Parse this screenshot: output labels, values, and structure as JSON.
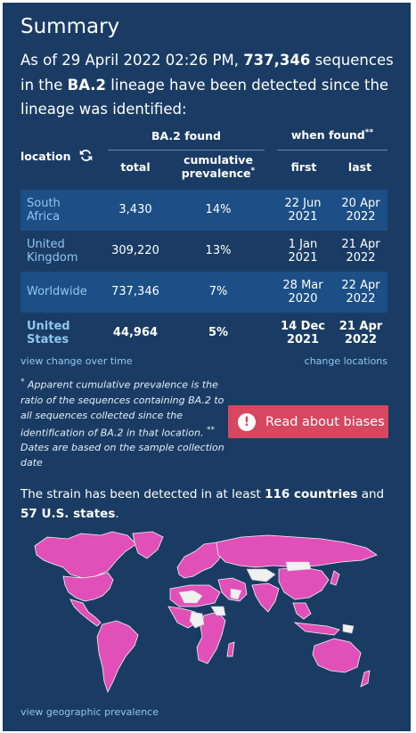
{
  "title": "Summary",
  "intro": {
    "part1": "As of 29 April 2022 02:26 PM, ",
    "sequences": "737,346",
    "part2": " sequences in the ",
    "lineage": "BA.2",
    "part3": " lineage have been detected since the lineage was identified:"
  },
  "table": {
    "location_header": "location",
    "found_header": "BA.2 found",
    "when_header": "when found",
    "when_sup": "**",
    "total_header": "total",
    "prevalence_header_1": "cumulative",
    "prevalence_header_2": "prevalence",
    "prevalence_sup": "*",
    "first_header": "first",
    "last_header": "last",
    "rows": [
      {
        "location_1": "South",
        "location_2": "Africa",
        "total": "3,430",
        "prevalence": "14%",
        "first_1": "22 Jun",
        "first_2": "2021",
        "last_1": "20 Apr",
        "last_2": "2022"
      },
      {
        "location_1": "United",
        "location_2": "Kingdom",
        "total": "309,220",
        "prevalence": "13%",
        "first_1": "1 Jan",
        "first_2": "2021",
        "last_1": "21 Apr",
        "last_2": "2022"
      },
      {
        "location_1": "Worldwide",
        "location_2": "",
        "total": "737,346",
        "prevalence": "7%",
        "first_1": "28 Mar",
        "first_2": "2020",
        "last_1": "22 Apr",
        "last_2": "2022"
      },
      {
        "location_1": "United",
        "location_2": "States",
        "total": "44,964",
        "prevalence": "5%",
        "first_1": "14 Dec",
        "first_2": "2021",
        "last_1": "21 Apr",
        "last_2": "2022"
      }
    ]
  },
  "links": {
    "change_over_time": "view change over time",
    "change_locations": "change locations",
    "geographic_prevalence": "view geographic prevalence"
  },
  "footnote": {
    "star": "*",
    "text1": " Apparent cumulative prevalence is the ratio of the sequences containing BA.2 to all sequences collected since the identification of BA.2 in that location. ",
    "star2": "**",
    "text2": " Dates are based on the sample collection date"
  },
  "bias_button": {
    "label": "Read about biases",
    "icon": "!"
  },
  "strain": {
    "part1": "The strain has been detected in at least ",
    "countries": "116 countries",
    "part2": " and ",
    "states": "57 U.S. states",
    "part3": "."
  },
  "colors": {
    "background": "#1a3c64",
    "row_highlight": "#1c4f85",
    "link": "#8fc7ee",
    "accent": "#d7475f",
    "detected": "#e14fb8",
    "not_detected": "#f0f0f0"
  },
  "icons": {
    "refresh": "refresh-icon",
    "alert": "exclamation-icon"
  }
}
